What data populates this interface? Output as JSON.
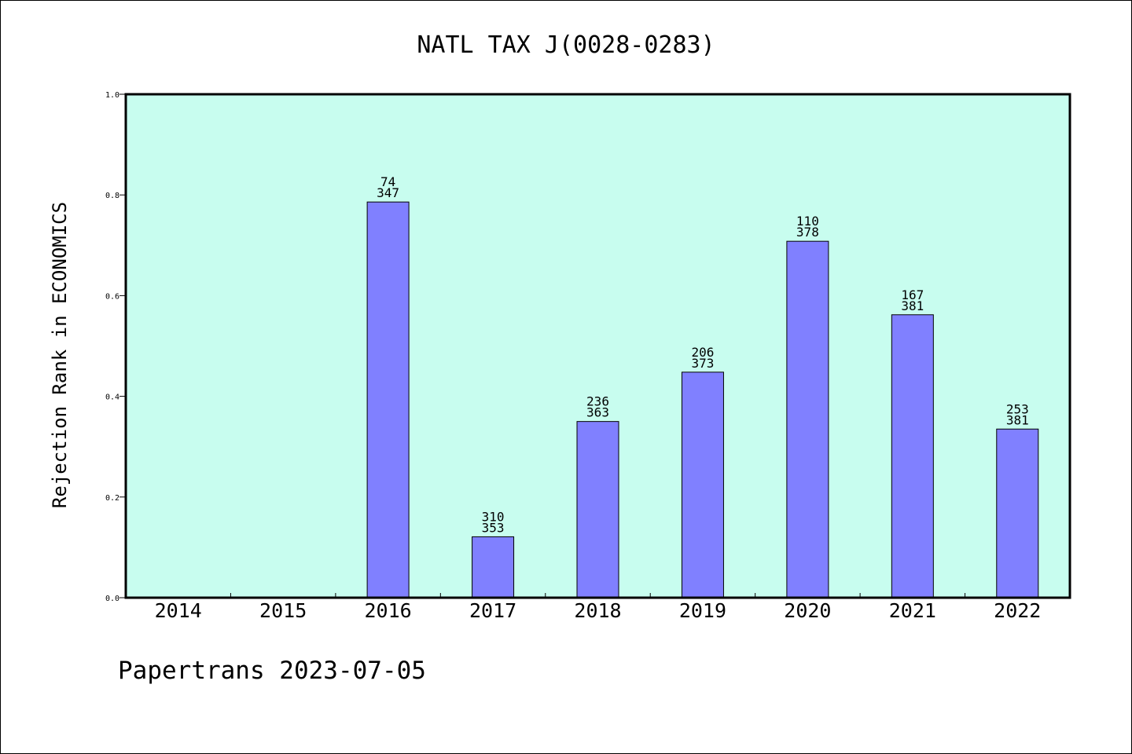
{
  "chart_data": {
    "type": "bar",
    "title": "NATL TAX J(0028-0283)",
    "ylabel": "Rejection Rank in ECONOMICS",
    "xlabel": "",
    "ylim": [
      0,
      1.0
    ],
    "yticks": [
      "0.0",
      "0.2",
      "0.4",
      "0.6",
      "0.8",
      "1.0"
    ],
    "categories": [
      "2014",
      "2015",
      "2016",
      "2017",
      "2018",
      "2019",
      "2020",
      "2021",
      "2022"
    ],
    "values": [
      null,
      null,
      0.786,
      0.121,
      0.35,
      0.448,
      0.708,
      0.562,
      0.335
    ],
    "labels_top": [
      "",
      "",
      "74",
      "310",
      "236",
      "206",
      "110",
      "167",
      "253"
    ],
    "labels_bottom": [
      "",
      "",
      "347",
      "353",
      "363",
      "373",
      "378",
      "381",
      "381"
    ],
    "grid": false,
    "plot_background": "#c8fdef",
    "bar_color": "#8080ff",
    "footer": "Papertrans 2023-07-05"
  }
}
